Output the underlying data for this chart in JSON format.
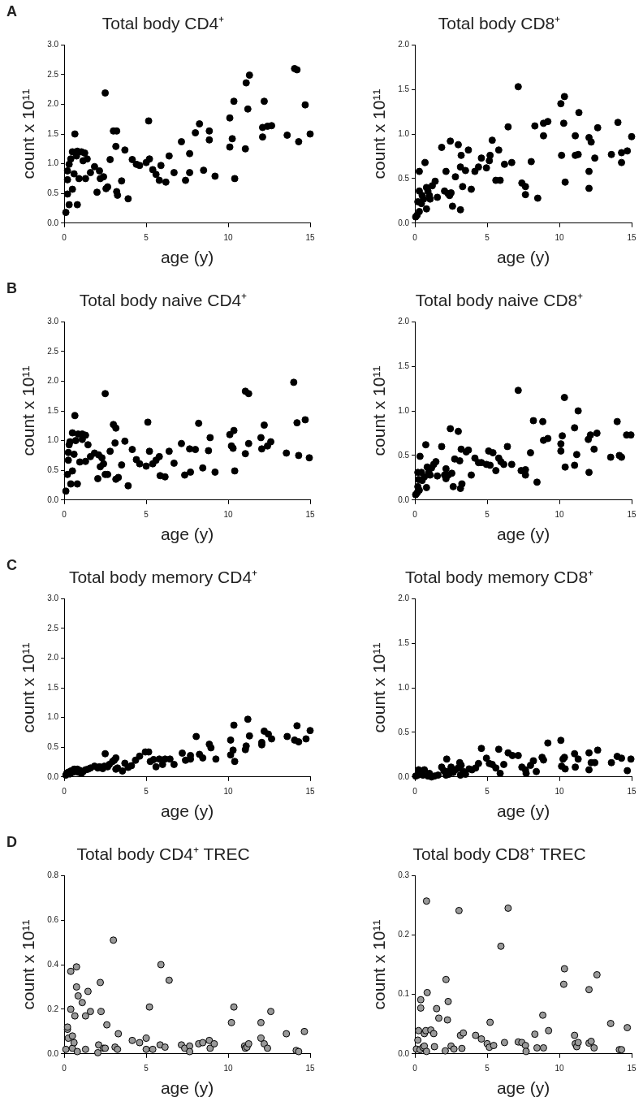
{
  "chart_data": [
    {
      "type": "scatter",
      "title": "Total body CD4⁺",
      "xlabel": "age (y)",
      "ylabel": "count x 10¹¹",
      "annotations": [
        "A"
      ],
      "color": "#000000",
      "marker": "circle",
      "xlim": [
        0,
        15
      ],
      "xticks": [
        0,
        5,
        10,
        15
      ],
      "ylim": [
        0,
        3
      ],
      "yticks": [
        {
          "value": 0,
          "label": "0.0"
        },
        {
          "value": 0.5,
          "label": "0.5"
        },
        {
          "value": 1,
          "label": "1.0"
        },
        {
          "value": 1.5,
          "label": "1.5"
        },
        {
          "value": 2,
          "label": "2.0"
        },
        {
          "value": 2.5,
          "label": "2.5"
        },
        {
          "value": 3,
          "label": "3.0"
        }
      ],
      "x": [
        0.1,
        0.2,
        0.2,
        0.2,
        0.3,
        0.3,
        0.4,
        0.5,
        0.5,
        0.6,
        0.65,
        0.75,
        0.8,
        0.8,
        0.9,
        1.05,
        1.15,
        1.25,
        1.3,
        1.4,
        1.6,
        1.85,
        2.0,
        2.15,
        2.2,
        2.4,
        2.5,
        2.55,
        2.65,
        2.8,
        3.0,
        3.15,
        3.2,
        3.2,
        3.25,
        3.5,
        3.7,
        3.9,
        4.15,
        4.4,
        4.6,
        5.0,
        5.15,
        5.2,
        5.4,
        5.6,
        5.8,
        5.9,
        6.2,
        6.4,
        6.7,
        7.15,
        7.4,
        7.65,
        7.65,
        8.0,
        8.25,
        8.5,
        8.85,
        8.85,
        9.2,
        10.1,
        10.1,
        10.25,
        10.35,
        10.4,
        11.1,
        11.05,
        11.2,
        11.3,
        12.1,
        12.1,
        12.2,
        12.4,
        12.65,
        13.6,
        14.05,
        14.2,
        14.3,
        14.7,
        15.0
      ],
      "values": [
        0.18,
        0.49,
        0.73,
        0.88,
        0.99,
        0.31,
        1.08,
        0.57,
        1.2,
        0.83,
        1.5,
        1.13,
        0.31,
        1.21,
        0.75,
        1.2,
        1.05,
        1.18,
        0.75,
        1.08,
        0.85,
        0.95,
        0.52,
        0.88,
        0.75,
        0.78,
        2.19,
        0.58,
        0.61,
        1.07,
        1.55,
        1.29,
        1.55,
        0.53,
        0.47,
        0.71,
        1.23,
        0.41,
        1.07,
        0.99,
        0.97,
        1.02,
        1.72,
        1.08,
        0.9,
        0.82,
        0.72,
        0.97,
        0.69,
        1.13,
        0.85,
        1.37,
        0.72,
        0.85,
        1.17,
        1.52,
        1.67,
        0.89,
        1.55,
        1.4,
        0.79,
        1.77,
        1.28,
        1.42,
        2.05,
        0.75,
        2.36,
        1.25,
        1.92,
        2.49,
        1.61,
        1.45,
        2.05,
        1.63,
        1.64,
        1.48,
        2.6,
        2.58,
        1.37,
        1.99,
        1.5
      ]
    },
    {
      "type": "scatter",
      "title": "Total body CD8⁺",
      "xlabel": "age (y)",
      "ylabel": "count x 10¹¹",
      "color": "#000000",
      "marker": "circle",
      "xlim": [
        0,
        15
      ],
      "xticks": [
        0,
        5,
        10,
        15
      ],
      "ylim": [
        0,
        2
      ],
      "yticks": [
        {
          "value": 0,
          "label": "0.0"
        },
        {
          "value": 0.5,
          "label": "0.5"
        },
        {
          "value": 1,
          "label": "1.0"
        },
        {
          "value": 1.5,
          "label": "1.5"
        },
        {
          "value": 2,
          "label": "2.0"
        }
      ],
      "x": [
        0.05,
        0.15,
        0.2,
        0.3,
        0.3,
        0.3,
        0.45,
        0.5,
        0.6,
        0.7,
        0.8,
        0.8,
        0.9,
        1.0,
        1.05,
        1.2,
        1.4,
        1.55,
        1.85,
        2.05,
        2.15,
        2.3,
        2.4,
        2.45,
        2.5,
        2.6,
        2.8,
        3.0,
        3.15,
        3.15,
        3.2,
        3.3,
        3.5,
        3.7,
        3.9,
        4.15,
        4.4,
        4.6,
        4.95,
        5.15,
        5.2,
        5.35,
        5.6,
        5.8,
        5.9,
        6.2,
        6.45,
        6.7,
        7.15,
        7.4,
        7.65,
        7.65,
        8.05,
        8.3,
        8.5,
        8.9,
        8.9,
        9.2,
        10.1,
        10.15,
        10.3,
        10.35,
        10.4,
        11.1,
        11.1,
        11.3,
        11.35,
        12.05,
        12.05,
        12.05,
        12.2,
        12.45,
        12.65,
        13.6,
        14.05,
        14.3,
        14.3,
        14.7,
        15.0
      ],
      "values": [
        0.07,
        0.09,
        0.24,
        0.36,
        0.58,
        0.13,
        0.22,
        0.31,
        0.27,
        0.68,
        0.4,
        0.16,
        0.36,
        0.31,
        0.27,
        0.42,
        0.47,
        0.29,
        0.85,
        0.36,
        0.58,
        0.33,
        0.31,
        0.92,
        0.34,
        0.19,
        0.52,
        0.88,
        0.15,
        0.63,
        0.76,
        0.41,
        0.59,
        0.82,
        0.38,
        0.58,
        0.63,
        0.73,
        0.62,
        0.7,
        0.76,
        0.93,
        0.48,
        0.82,
        0.48,
        0.66,
        1.08,
        0.68,
        1.53,
        0.45,
        0.41,
        0.32,
        0.69,
        1.09,
        0.28,
        1.12,
        0.98,
        1.14,
        1.34,
        0.76,
        1.12,
        1.42,
        0.46,
        0.98,
        0.76,
        0.77,
        1.24,
        0.58,
        0.39,
        0.96,
        0.91,
        0.73,
        1.07,
        0.77,
        1.13,
        0.79,
        0.68,
        0.81,
        0.97
      ]
    },
    {
      "type": "scatter",
      "title": "Total body naive CD4⁺",
      "xlabel": "age (y)",
      "ylabel": "count x 10¹¹",
      "annotations": [
        "B"
      ],
      "color": "#000000",
      "marker": "circle",
      "xlim": [
        0,
        15
      ],
      "xticks": [
        0,
        5,
        10,
        15
      ],
      "ylim": [
        0,
        3
      ],
      "yticks": [
        {
          "value": 0,
          "label": "0.0"
        },
        {
          "value": 0.5,
          "label": "0.5"
        },
        {
          "value": 1,
          "label": "1.0"
        },
        {
          "value": 1.5,
          "label": "1.5"
        },
        {
          "value": 2,
          "label": "2.0"
        },
        {
          "value": 2.5,
          "label": "2.5"
        },
        {
          "value": 3,
          "label": "3.0"
        }
      ],
      "x": [
        0.1,
        0.2,
        0.25,
        0.25,
        0.3,
        0.35,
        0.4,
        0.5,
        0.5,
        0.6,
        0.65,
        0.7,
        0.8,
        0.85,
        0.95,
        1.1,
        1.1,
        1.3,
        1.3,
        1.45,
        1.6,
        1.85,
        2.05,
        2.1,
        2.2,
        2.3,
        2.4,
        2.5,
        2.5,
        2.65,
        2.8,
        3.0,
        3.15,
        3.1,
        3.15,
        3.3,
        3.5,
        3.7,
        3.9,
        4.15,
        4.4,
        4.6,
        5.0,
        5.1,
        5.2,
        5.4,
        5.6,
        5.8,
        5.85,
        6.15,
        6.4,
        6.7,
        7.15,
        7.35,
        7.65,
        7.7,
        8.0,
        8.2,
        8.45,
        8.8,
        8.9,
        9.2,
        10.1,
        10.2,
        10.3,
        10.35,
        10.4,
        11.05,
        11.05,
        11.25,
        11.25,
        12.0,
        12.05,
        12.2,
        12.4,
        12.6,
        13.55,
        14.0,
        14.2,
        14.3,
        14.7,
        14.95
      ],
      "values": [
        0.15,
        0.43,
        0.67,
        0.8,
        0.93,
        0.98,
        0.27,
        0.49,
        1.13,
        0.77,
        1.42,
        1.0,
        0.27,
        1.11,
        0.64,
        1.02,
        1.11,
        1.09,
        0.65,
        0.93,
        0.73,
        0.79,
        0.36,
        0.76,
        0.56,
        0.71,
        0.61,
        1.79,
        0.43,
        0.43,
        0.82,
        1.27,
        1.21,
        0.96,
        0.35,
        0.38,
        0.59,
        0.99,
        0.24,
        0.85,
        0.68,
        0.61,
        0.57,
        1.31,
        0.82,
        0.61,
        0.67,
        0.73,
        0.41,
        0.39,
        0.82,
        0.62,
        0.95,
        0.42,
        0.86,
        0.47,
        0.85,
        1.29,
        0.54,
        0.83,
        1.05,
        0.47,
        1.1,
        0.91,
        0.87,
        1.17,
        0.49,
        0.78,
        1.83,
        1.79,
        0.95,
        1.05,
        0.86,
        1.26,
        0.91,
        0.98,
        0.79,
        1.98,
        1.3,
        0.75,
        1.35,
        0.71
      ]
    },
    {
      "type": "scatter",
      "title": "Total body naive CD8⁺",
      "xlabel": "age (y)",
      "ylabel": "count x 10¹¹",
      "color": "#000000",
      "marker": "circle",
      "xlim": [
        0,
        15
      ],
      "xticks": [
        0,
        5,
        10,
        15
      ],
      "ylim": [
        0,
        2
      ],
      "yticks": [
        {
          "value": 0,
          "label": "0.0"
        },
        {
          "value": 0.5,
          "label": "0.5"
        },
        {
          "value": 1,
          "label": "1.0"
        },
        {
          "value": 1.5,
          "label": "1.5"
        },
        {
          "value": 2,
          "label": "2.0"
        }
      ],
      "x": [
        0.05,
        0.15,
        0.2,
        0.2,
        0.25,
        0.3,
        0.35,
        0.45,
        0.5,
        0.65,
        0.75,
        0.8,
        0.85,
        0.95,
        1.05,
        1.15,
        1.3,
        1.45,
        1.55,
        1.85,
        2.05,
        2.15,
        2.15,
        2.3,
        2.45,
        2.55,
        2.65,
        2.75,
        3.0,
        3.1,
        3.15,
        3.2,
        3.25,
        3.55,
        3.7,
        3.9,
        4.15,
        4.4,
        4.6,
        4.95,
        5.1,
        5.2,
        5.4,
        5.6,
        5.8,
        5.95,
        6.15,
        6.4,
        6.7,
        7.15,
        7.35,
        7.65,
        7.65,
        8.0,
        8.2,
        8.45,
        8.85,
        8.9,
        9.2,
        10.1,
        10.1,
        10.2,
        10.35,
        10.4,
        11.05,
        11.05,
        11.2,
        11.3,
        12.0,
        12.05,
        12.15,
        12.4,
        12.6,
        13.55,
        14.0,
        14.15,
        14.3,
        14.65,
        14.95
      ],
      "values": [
        0.06,
        0.08,
        0.15,
        0.31,
        0.23,
        0.11,
        0.49,
        0.31,
        0.22,
        0.26,
        0.62,
        0.14,
        0.37,
        0.31,
        0.28,
        0.36,
        0.4,
        0.43,
        0.27,
        0.6,
        0.28,
        0.35,
        0.24,
        0.28,
        0.8,
        0.3,
        0.15,
        0.46,
        0.77,
        0.44,
        0.13,
        0.57,
        0.18,
        0.54,
        0.56,
        0.28,
        0.47,
        0.42,
        0.42,
        0.4,
        0.55,
        0.39,
        0.53,
        0.33,
        0.47,
        0.43,
        0.4,
        0.6,
        0.4,
        1.23,
        0.33,
        0.34,
        0.28,
        0.53,
        0.89,
        0.2,
        0.88,
        0.67,
        0.69,
        0.63,
        0.55,
        0.72,
        1.15,
        0.37,
        0.81,
        0.39,
        0.51,
        1.0,
        0.68,
        0.31,
        0.73,
        0.57,
        0.75,
        0.48,
        0.88,
        0.5,
        0.48,
        0.73,
        0.73
      ]
    },
    {
      "type": "scatter",
      "title": "Total body memory CD4⁺",
      "xlabel": "age (y)",
      "ylabel": "count x 10¹¹",
      "annotations": [
        "C"
      ],
      "color": "#000000",
      "marker": "circle",
      "xlim": [
        0,
        15
      ],
      "xticks": [
        0,
        5,
        10,
        15
      ],
      "ylim": [
        0,
        3
      ],
      "yticks": [
        {
          "value": 0,
          "label": "0.0"
        },
        {
          "value": 0.5,
          "label": "0.5"
        },
        {
          "value": 1,
          "label": "1.0"
        },
        {
          "value": 1.5,
          "label": "1.5"
        },
        {
          "value": 2,
          "label": "2.0"
        },
        {
          "value": 2.5,
          "label": "2.5"
        },
        {
          "value": 3,
          "label": "3.0"
        }
      ],
      "x": [
        0.1,
        0.15,
        0.25,
        0.35,
        0.4,
        0.55,
        0.6,
        0.8,
        0.85,
        0.95,
        1.05,
        1.15,
        1.3,
        1.45,
        1.6,
        1.85,
        2.05,
        2.15,
        2.35,
        2.45,
        2.5,
        2.65,
        2.75,
        2.95,
        3.05,
        3.15,
        3.15,
        3.25,
        3.55,
        3.7,
        3.9,
        4.1,
        4.35,
        4.6,
        4.95,
        5.15,
        5.25,
        5.45,
        5.6,
        5.8,
        6.0,
        6.15,
        6.45,
        6.7,
        7.2,
        7.4,
        7.7,
        7.7,
        8.05,
        8.25,
        8.45,
        8.85,
        8.95,
        9.25,
        10.15,
        10.15,
        10.3,
        10.35,
        10.4,
        11.05,
        11.1,
        11.2,
        11.3,
        12.05,
        12.05,
        12.2,
        12.45,
        12.65,
        13.6,
        14.05,
        14.2,
        14.3,
        14.75,
        15.0
      ],
      "values": [
        0.03,
        0.06,
        0.08,
        0.05,
        0.1,
        0.08,
        0.13,
        0.13,
        0.08,
        0.11,
        0.06,
        0.09,
        0.12,
        0.13,
        0.15,
        0.18,
        0.15,
        0.17,
        0.14,
        0.18,
        0.39,
        0.17,
        0.21,
        0.26,
        0.28,
        0.32,
        0.13,
        0.15,
        0.1,
        0.23,
        0.16,
        0.19,
        0.28,
        0.35,
        0.42,
        0.42,
        0.26,
        0.29,
        0.17,
        0.3,
        0.21,
        0.3,
        0.3,
        0.21,
        0.4,
        0.28,
        0.36,
        0.3,
        0.68,
        0.38,
        0.32,
        0.55,
        0.49,
        0.3,
        0.62,
        0.37,
        0.45,
        0.87,
        0.26,
        0.46,
        0.52,
        0.97,
        0.69,
        0.54,
        0.58,
        0.77,
        0.72,
        0.64,
        0.68,
        0.62,
        0.86,
        0.59,
        0.64,
        0.78
      ]
    },
    {
      "type": "scatter",
      "title": "Total body memory CD8⁺",
      "xlabel": "age (y)",
      "ylabel": "count x 10¹¹",
      "color": "#000000",
      "marker": "circle",
      "xlim": [
        0,
        15
      ],
      "xticks": [
        0,
        5,
        10,
        15
      ],
      "ylim": [
        0,
        2
      ],
      "yticks": [
        {
          "value": 0,
          "label": "0.0"
        },
        {
          "value": 0.5,
          "label": "0.5"
        },
        {
          "value": 1,
          "label": "1.0"
        },
        {
          "value": 1.5,
          "label": "1.5"
        },
        {
          "value": 2,
          "label": "2.0"
        }
      ],
      "x": [
        0.05,
        0.2,
        0.25,
        0.55,
        0.65,
        0.9,
        1.0,
        1.15,
        1.35,
        1.6,
        1.85,
        2.0,
        2.15,
        2.2,
        2.25,
        2.35,
        2.5,
        2.65,
        2.8,
        3.0,
        3.1,
        3.2,
        3.15,
        3.35,
        3.5,
        3.75,
        3.95,
        4.2,
        4.4,
        4.6,
        4.95,
        5.15,
        5.35,
        5.6,
        5.8,
        5.9,
        6.15,
        6.45,
        6.75,
        7.15,
        7.4,
        7.65,
        7.7,
        8.0,
        8.2,
        8.4,
        8.8,
        8.9,
        9.2,
        10.1,
        10.15,
        10.25,
        10.35,
        10.4,
        11.05,
        11.1,
        11.3,
        12.05,
        12.05,
        12.2,
        12.45,
        12.65,
        13.6,
        14.0,
        14.3,
        14.7,
        14.95
      ],
      "values": [
        0.01,
        0.02,
        0.08,
        0.02,
        0.08,
        0.01,
        0.04,
        0.0,
        0.01,
        0.02,
        0.11,
        0.07,
        0.02,
        0.2,
        0.06,
        0.03,
        0.11,
        0.05,
        0.08,
        0.1,
        0.16,
        0.13,
        0.02,
        0.06,
        0.03,
        0.09,
        0.08,
        0.1,
        0.15,
        0.32,
        0.21,
        0.15,
        0.14,
        0.1,
        0.31,
        0.04,
        0.14,
        0.27,
        0.24,
        0.24,
        0.11,
        0.08,
        0.04,
        0.13,
        0.18,
        0.06,
        0.22,
        0.19,
        0.38,
        0.41,
        0.12,
        0.2,
        0.22,
        0.09,
        0.26,
        0.11,
        0.2,
        0.27,
        0.08,
        0.16,
        0.16,
        0.3,
        0.16,
        0.23,
        0.21,
        0.07,
        0.2
      ]
    },
    {
      "type": "scatter",
      "title": "Total body CD4⁺ TREC",
      "xlabel": "age (y)",
      "ylabel": "count x 10¹¹",
      "annotations": [
        "D"
      ],
      "color": "#999999",
      "marker": "circle",
      "xlim": [
        0,
        15
      ],
      "xticks": [
        0,
        5,
        10,
        15
      ],
      "ylim": [
        0,
        0.8
      ],
      "yticks": [
        {
          "value": 0,
          "label": "0.0"
        },
        {
          "value": 0.2,
          "label": "0.2"
        },
        {
          "value": 0.4,
          "label": "0.4"
        },
        {
          "value": 0.6,
          "label": "0.6"
        },
        {
          "value": 0.8,
          "label": "0.8"
        }
      ],
      "x": [
        0.1,
        0.2,
        0.2,
        0.25,
        0.4,
        0.4,
        0.5,
        0.5,
        0.6,
        0.65,
        0.75,
        0.75,
        0.8,
        0.85,
        1.1,
        1.3,
        1.3,
        1.45,
        1.6,
        2.05,
        2.1,
        2.2,
        2.25,
        2.4,
        2.5,
        2.6,
        3.0,
        3.1,
        3.25,
        3.3,
        4.15,
        4.6,
        5.0,
        5.0,
        5.2,
        5.4,
        5.85,
        5.9,
        6.15,
        6.4,
        7.15,
        7.35,
        7.65,
        7.65,
        8.2,
        8.45,
        8.85,
        8.9,
        9.15,
        10.2,
        10.35,
        11.0,
        11.05,
        11.15,
        11.25,
        12.0,
        12.0,
        12.2,
        12.4,
        12.6,
        13.55,
        14.15,
        14.3,
        14.65
      ],
      "values": [
        0.02,
        0.11,
        0.12,
        0.07,
        0.37,
        0.2,
        0.08,
        0.025,
        0.05,
        0.17,
        0.39,
        0.3,
        0.01,
        0.26,
        0.23,
        0.02,
        0.17,
        0.28,
        0.19,
        0.005,
        0.04,
        0.32,
        0.19,
        0.025,
        0.025,
        0.13,
        0.51,
        0.03,
        0.02,
        0.09,
        0.06,
        0.05,
        0.07,
        0.02,
        0.21,
        0.02,
        0.04,
        0.4,
        0.03,
        0.33,
        0.04,
        0.025,
        0.035,
        0.01,
        0.045,
        0.05,
        0.06,
        0.025,
        0.045,
        0.14,
        0.21,
        0.035,
        0.025,
        0.03,
        0.045,
        0.14,
        0.07,
        0.045,
        0.025,
        0.19,
        0.09,
        0.015,
        0.01,
        0.1
      ]
    },
    {
      "type": "scatter",
      "title": "Total body CD8⁺ TREC",
      "xlabel": "age (y)",
      "ylabel": "count x 10¹¹",
      "color": "#999999",
      "marker": "circle",
      "xlim": [
        0,
        15
      ],
      "xticks": [
        0,
        5,
        10,
        15
      ],
      "ylim": [
        0,
        0.3
      ],
      "yticks": [
        {
          "value": 0,
          "label": "0.0"
        },
        {
          "value": 0.1,
          "label": "0.1"
        },
        {
          "value": 0.2,
          "label": "0.2"
        },
        {
          "value": 0.3,
          "label": "0.3"
        }
      ],
      "x": [
        0.1,
        0.2,
        0.25,
        0.35,
        0.4,
        0.4,
        0.55,
        0.65,
        0.65,
        0.75,
        0.8,
        0.8,
        0.85,
        1.1,
        1.3,
        1.35,
        1.5,
        1.65,
        2.1,
        2.15,
        2.25,
        2.3,
        2.5,
        2.7,
        3.05,
        3.15,
        3.25,
        3.35,
        4.2,
        4.6,
        5.0,
        5.15,
        5.2,
        5.45,
        5.95,
        6.2,
        6.45,
        7.15,
        7.4,
        7.65,
        7.7,
        8.3,
        8.45,
        8.85,
        8.9,
        9.25,
        10.3,
        10.35,
        11.05,
        11.1,
        11.2,
        11.3,
        12.05,
        12.05,
        12.2,
        12.4,
        12.6,
        13.55,
        14.15,
        14.3,
        14.7
      ],
      "values": [
        0.008,
        0.023,
        0.039,
        0.007,
        0.091,
        0.077,
        0.011,
        0.034,
        0.013,
        0.039,
        0.257,
        0.004,
        0.103,
        0.04,
        0.034,
        0.012,
        0.076,
        0.06,
        0.005,
        0.125,
        0.057,
        0.088,
        0.013,
        0.008,
        0.241,
        0.031,
        0.009,
        0.035,
        0.031,
        0.025,
        0.017,
        0.011,
        0.053,
        0.014,
        0.181,
        0.019,
        0.245,
        0.02,
        0.019,
        0.014,
        0.004,
        0.033,
        0.01,
        0.065,
        0.01,
        0.039,
        0.117,
        0.143,
        0.031,
        0.017,
        0.012,
        0.019,
        0.108,
        0.018,
        0.021,
        0.01,
        0.133,
        0.051,
        0.007,
        0.007,
        0.044
      ]
    }
  ]
}
